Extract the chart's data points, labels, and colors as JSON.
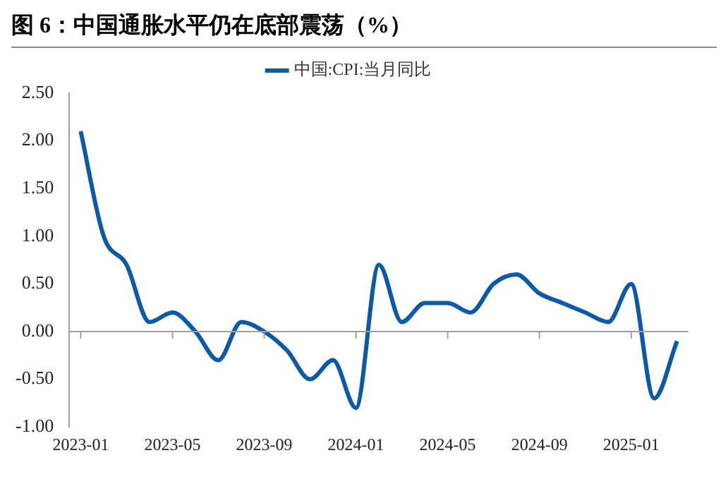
{
  "chart_data": {
    "type": "line",
    "title": "图 6：中国通胀水平仍在底部震荡（%）",
    "categories": [
      "2023-01",
      null,
      null,
      null,
      "2023-05",
      null,
      null,
      null,
      "2023-09",
      null,
      null,
      null,
      "2024-01",
      null,
      null,
      null,
      "2024-05",
      null,
      null,
      null,
      "2024-09",
      null,
      null,
      null,
      "2025-01",
      null,
      null
    ],
    "series": [
      {
        "name": "中国:CPI:当月同比",
        "color": "#0b5aa8",
        "values": [
          2.1,
          1.0,
          0.7,
          0.1,
          0.2,
          0.0,
          -0.3,
          0.1,
          0.0,
          -0.2,
          -0.5,
          -0.3,
          -0.8,
          0.7,
          0.1,
          0.3,
          0.3,
          0.2,
          0.5,
          0.6,
          0.4,
          0.3,
          0.2,
          0.1,
          0.5,
          -0.7,
          -0.1
        ]
      }
    ],
    "ylim": [
      -1,
      2.5
    ],
    "yticks": [
      {
        "value": -1,
        "label": "-1.00"
      },
      {
        "value": -0.5,
        "label": "-0.50"
      },
      {
        "value": 0,
        "label": "0.00"
      },
      {
        "value": 0.5,
        "label": "0.50"
      },
      {
        "value": 1,
        "label": "1.00"
      },
      {
        "value": 1.5,
        "label": "1.50"
      },
      {
        "value": 2,
        "label": "2.00"
      },
      {
        "value": 2.5,
        "label": "2.50"
      }
    ],
    "ref_lines": [
      {
        "axis": "y",
        "value": 0,
        "color": "#a0a0a0"
      }
    ],
    "legend": "top",
    "grid": false,
    "marker": "none",
    "line_style": "solid"
  }
}
